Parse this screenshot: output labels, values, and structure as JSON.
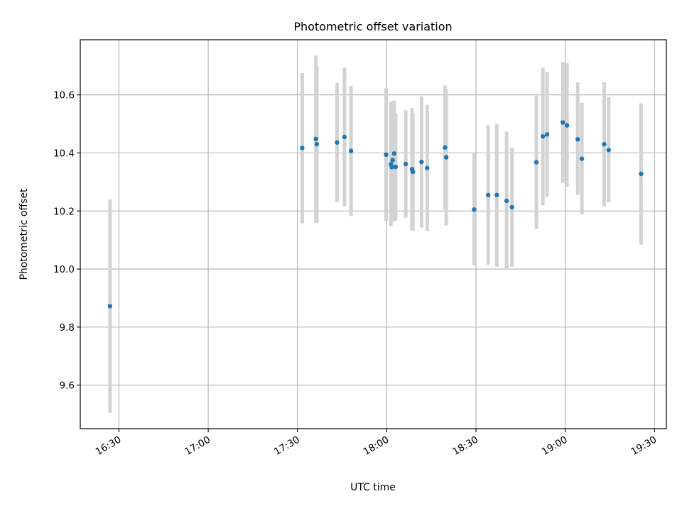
{
  "chart_data": {
    "type": "scatter",
    "title": "Photometric offset variation",
    "xlabel": "UTC time",
    "ylabel": "Photometric offset",
    "grid": true,
    "x_axis": {
      "kind": "time",
      "range": [
        "16:17",
        "19:34"
      ],
      "ticks": [
        "16:30",
        "17:00",
        "17:30",
        "18:00",
        "18:30",
        "19:00",
        "19:30"
      ],
      "tick_label_rotation_deg": 30
    },
    "y_axis": {
      "range": [
        9.45,
        10.79
      ],
      "ticks": [
        9.6,
        9.8,
        10.0,
        10.2,
        10.4,
        10.6
      ],
      "tick_labels": [
        "9.6",
        "9.8",
        "10.0",
        "10.2",
        "10.4",
        "10.6"
      ]
    },
    "marker_color": "#1f77b4",
    "errorbar_color": "#d3d3d3",
    "points": [
      {
        "t": "16:27.0",
        "y": 9.872,
        "lo": 9.505,
        "hi": 10.24
      },
      {
        "t": "17:31.6",
        "y": 10.417,
        "lo": 10.157,
        "hi": 10.675
      },
      {
        "t": "17:36.2",
        "y": 10.448,
        "lo": 10.16,
        "hi": 10.736
      },
      {
        "t": "17:36.5",
        "y": 10.43,
        "lo": 10.159,
        "hi": 10.699
      },
      {
        "t": "17:43.3",
        "y": 10.436,
        "lo": 10.23,
        "hi": 10.642
      },
      {
        "t": "17:45.8",
        "y": 10.455,
        "lo": 10.216,
        "hi": 10.694
      },
      {
        "t": "17:48.0",
        "y": 10.407,
        "lo": 10.183,
        "hi": 10.631
      },
      {
        "t": "17:59.8",
        "y": 10.394,
        "lo": 10.165,
        "hi": 10.623
      },
      {
        "t": "18:01.4",
        "y": 10.361,
        "lo": 10.147,
        "hi": 10.575
      },
      {
        "t": "18:01.7",
        "y": 10.351,
        "lo": 10.162,
        "hi": 10.541
      },
      {
        "t": "18:02.0",
        "y": 10.375,
        "lo": 10.17,
        "hi": 10.579
      },
      {
        "t": "18:02.5",
        "y": 10.398,
        "lo": 10.165,
        "hi": 10.58
      },
      {
        "t": "18:03.0",
        "y": 10.352,
        "lo": 10.167,
        "hi": 10.537
      },
      {
        "t": "18:06.4",
        "y": 10.362,
        "lo": 10.177,
        "hi": 10.547
      },
      {
        "t": "18:08.5",
        "y": 10.344,
        "lo": 10.133,
        "hi": 10.555
      },
      {
        "t": "18:08.8",
        "y": 10.335,
        "lo": 10.133,
        "hi": 10.537
      },
      {
        "t": "18:11.7",
        "y": 10.369,
        "lo": 10.143,
        "hi": 10.595
      },
      {
        "t": "18:13.6",
        "y": 10.348,
        "lo": 10.13,
        "hi": 10.566
      },
      {
        "t": "18:19.6",
        "y": 10.419,
        "lo": 10.205,
        "hi": 10.633
      },
      {
        "t": "18:20.0",
        "y": 10.385,
        "lo": 10.15,
        "hi": 10.62
      },
      {
        "t": "18:29.4",
        "y": 10.205,
        "lo": 10.012,
        "hi": 10.398
      },
      {
        "t": "18:34.1",
        "y": 10.255,
        "lo": 10.015,
        "hi": 10.495
      },
      {
        "t": "18:37.0",
        "y": 10.255,
        "lo": 10.008,
        "hi": 10.5
      },
      {
        "t": "18:40.3",
        "y": 10.235,
        "lo": 10.0,
        "hi": 10.473
      },
      {
        "t": "18:42.1",
        "y": 10.213,
        "lo": 10.008,
        "hi": 10.418
      },
      {
        "t": "18:50.3",
        "y": 10.368,
        "lo": 10.138,
        "hi": 10.597
      },
      {
        "t": "18:52.5",
        "y": 10.457,
        "lo": 10.219,
        "hi": 10.693
      },
      {
        "t": "18:53.9",
        "y": 10.464,
        "lo": 10.249,
        "hi": 10.679
      },
      {
        "t": "18:59.2",
        "y": 10.505,
        "lo": 10.297,
        "hi": 10.713
      },
      {
        "t": "19:00.6",
        "y": 10.495,
        "lo": 10.283,
        "hi": 10.709
      },
      {
        "t": "19:04.2",
        "y": 10.447,
        "lo": 10.255,
        "hi": 10.643
      },
      {
        "t": "19:05.6",
        "y": 10.38,
        "lo": 10.188,
        "hi": 10.573
      },
      {
        "t": "19:13.1",
        "y": 10.43,
        "lo": 10.216,
        "hi": 10.643
      },
      {
        "t": "19:14.6",
        "y": 10.41,
        "lo": 10.23,
        "hi": 10.592
      },
      {
        "t": "19:25.5",
        "y": 10.328,
        "lo": 10.084,
        "hi": 10.571
      }
    ]
  }
}
